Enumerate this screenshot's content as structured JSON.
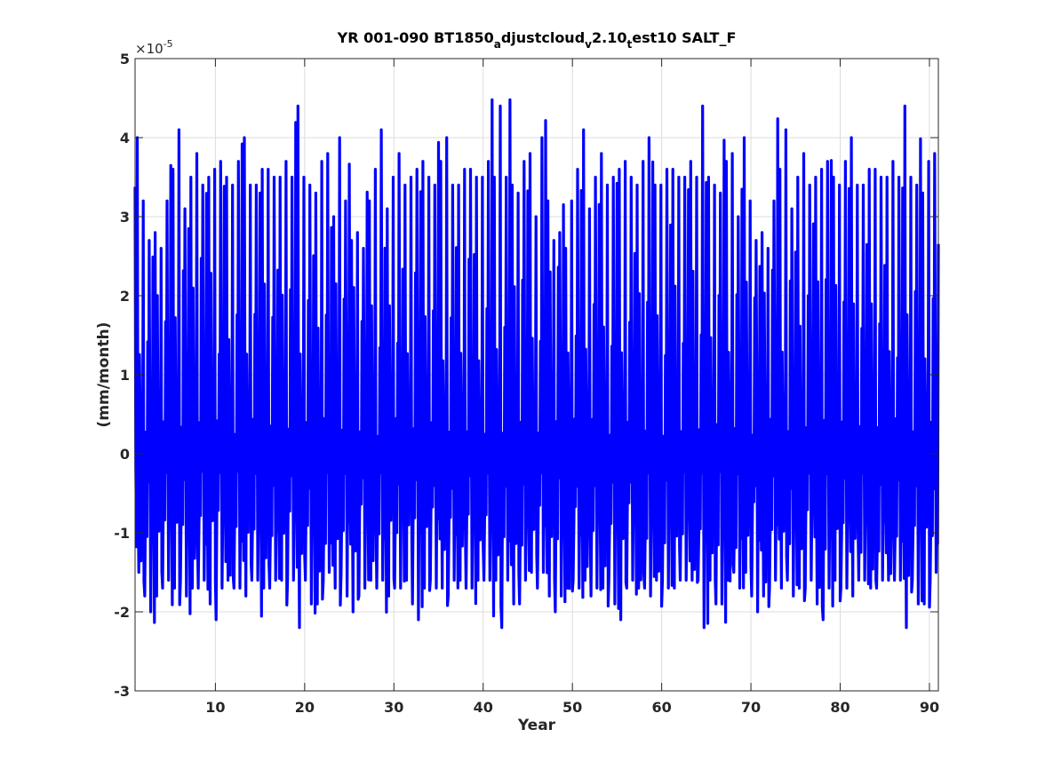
{
  "chart_data": {
    "type": "line",
    "title_parts": [
      {
        "text": "YR 001-090 BT1850",
        "sub": false
      },
      {
        "text": "a",
        "sub": true
      },
      {
        "text": "djustcloud",
        "sub": false
      },
      {
        "text": "v",
        "sub": true
      },
      {
        "text": "2.10",
        "sub": false
      },
      {
        "text": "t",
        "sub": true
      },
      {
        "text": "est10 SALT_F",
        "sub": false
      }
    ],
    "xlabel": "Year",
    "ylabel": "(mm/month)",
    "exponent_base": "×10",
    "exponent_power": "-5",
    "xlim": [
      1,
      91
    ],
    "ylim": [
      -3,
      5
    ],
    "xticks": [
      10,
      20,
      30,
      40,
      50,
      60,
      70,
      80,
      90
    ],
    "yticks": [
      -3,
      -2,
      -1,
      0,
      1,
      2,
      3,
      4,
      5
    ],
    "grid": true,
    "series": [
      {
        "color": "#0000ff",
        "samples_per_year": 12,
        "annual_peaks": [
          4.0,
          3.2,
          2.7,
          2.8,
          2.6,
          3.2,
          3.6,
          4.1,
          3.1,
          3.5,
          3.8,
          3.4,
          3.5,
          3.6,
          3.7,
          3.5,
          3.4,
          3.7,
          4.0,
          3.4,
          3.4,
          3.6,
          3.6,
          3.5,
          3.5,
          3.7,
          3.5,
          4.4,
          3.5,
          3.4,
          3.3,
          3.7,
          3.8,
          3.0
        ],
        "annual_troughs": [
          -1.9,
          -1.9,
          -1.6,
          -1.5,
          -1.7,
          -1.5,
          -1.8,
          -2.0,
          -1.8,
          -1.7,
          -1.6,
          -1.7,
          -1.6,
          -1.8,
          -1.7,
          -1.7,
          -1.6,
          -1.9,
          -2.1,
          -1.7,
          -1.6,
          -1.7,
          -1.7,
          -1.8,
          -1.6,
          -1.6,
          -1.7,
          -1.7,
          -1.6,
          -1.6,
          -1.6,
          -1.6,
          -2.2,
          -1.6
        ],
        "values": [
          4.0,
          -0.2,
          -1.9,
          1.1,
          -0.5,
          -1.2,
          2.1,
          0.3,
          -1.5,
          0.6,
          -0.8,
          1.2,
          -1.7,
          1.7,
          -0.9,
          0.4,
          -1.1,
          2.2,
          -0.4,
          -1.9,
          0.8,
          1.4,
          -0.6,
          -1.0
        ]
      }
    ]
  }
}
